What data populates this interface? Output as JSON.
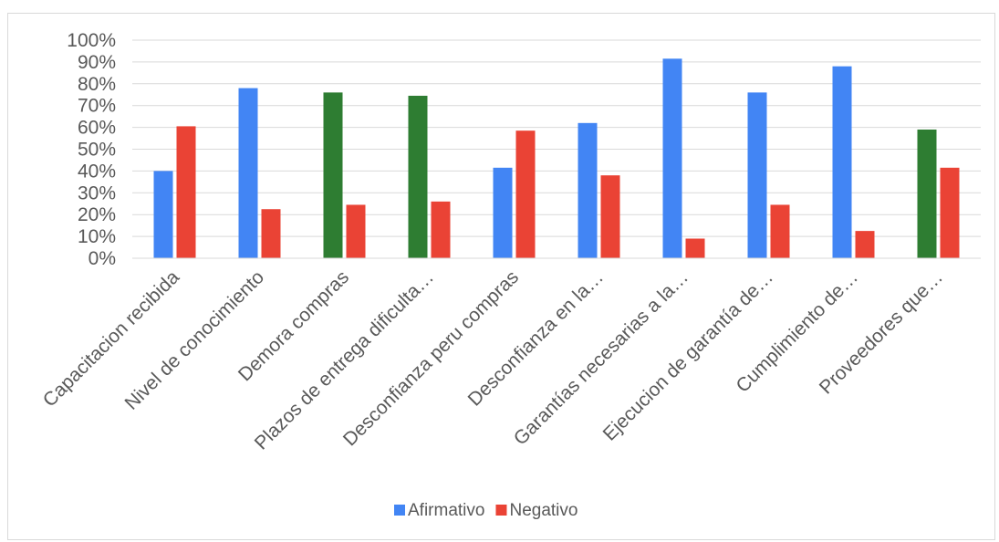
{
  "chart_data": {
    "type": "bar",
    "title": "",
    "xlabel": "",
    "ylabel": "",
    "ylim": [
      0,
      1
    ],
    "y_ticks": [
      "0%",
      "10%",
      "20%",
      "30%",
      "40%",
      "50%",
      "60%",
      "70%",
      "80%",
      "90%",
      "100%"
    ],
    "categories": [
      "Capacitacion recibida",
      "Nivel de conocimiento",
      "Demora compras",
      "Plazos de entrega dificulta…",
      "Desconfianza peru compras",
      "Desconfianza en la…",
      "Garantías necesarias a la…",
      "Ejecucion de garantía de…",
      "Cumplimiento de…",
      "Proveedores que…"
    ],
    "series": [
      {
        "name": "Afirmativo",
        "color": "#4285f4",
        "values": [
          0.4,
          0.78,
          0.76,
          0.745,
          0.415,
          0.62,
          0.915,
          0.76,
          0.88,
          0.59
        ],
        "point_colors": [
          "#4285f4",
          "#4285f4",
          "#2e7d32",
          "#2e7d32",
          "#4285f4",
          "#4285f4",
          "#4285f4",
          "#4285f4",
          "#4285f4",
          "#2e7d32"
        ]
      },
      {
        "name": "Negativo",
        "color": "#ea4335",
        "values": [
          0.605,
          0.225,
          0.245,
          0.26,
          0.585,
          0.38,
          0.09,
          0.245,
          0.125,
          0.415
        ]
      }
    ],
    "legend_position": "bottom",
    "grid": true
  }
}
